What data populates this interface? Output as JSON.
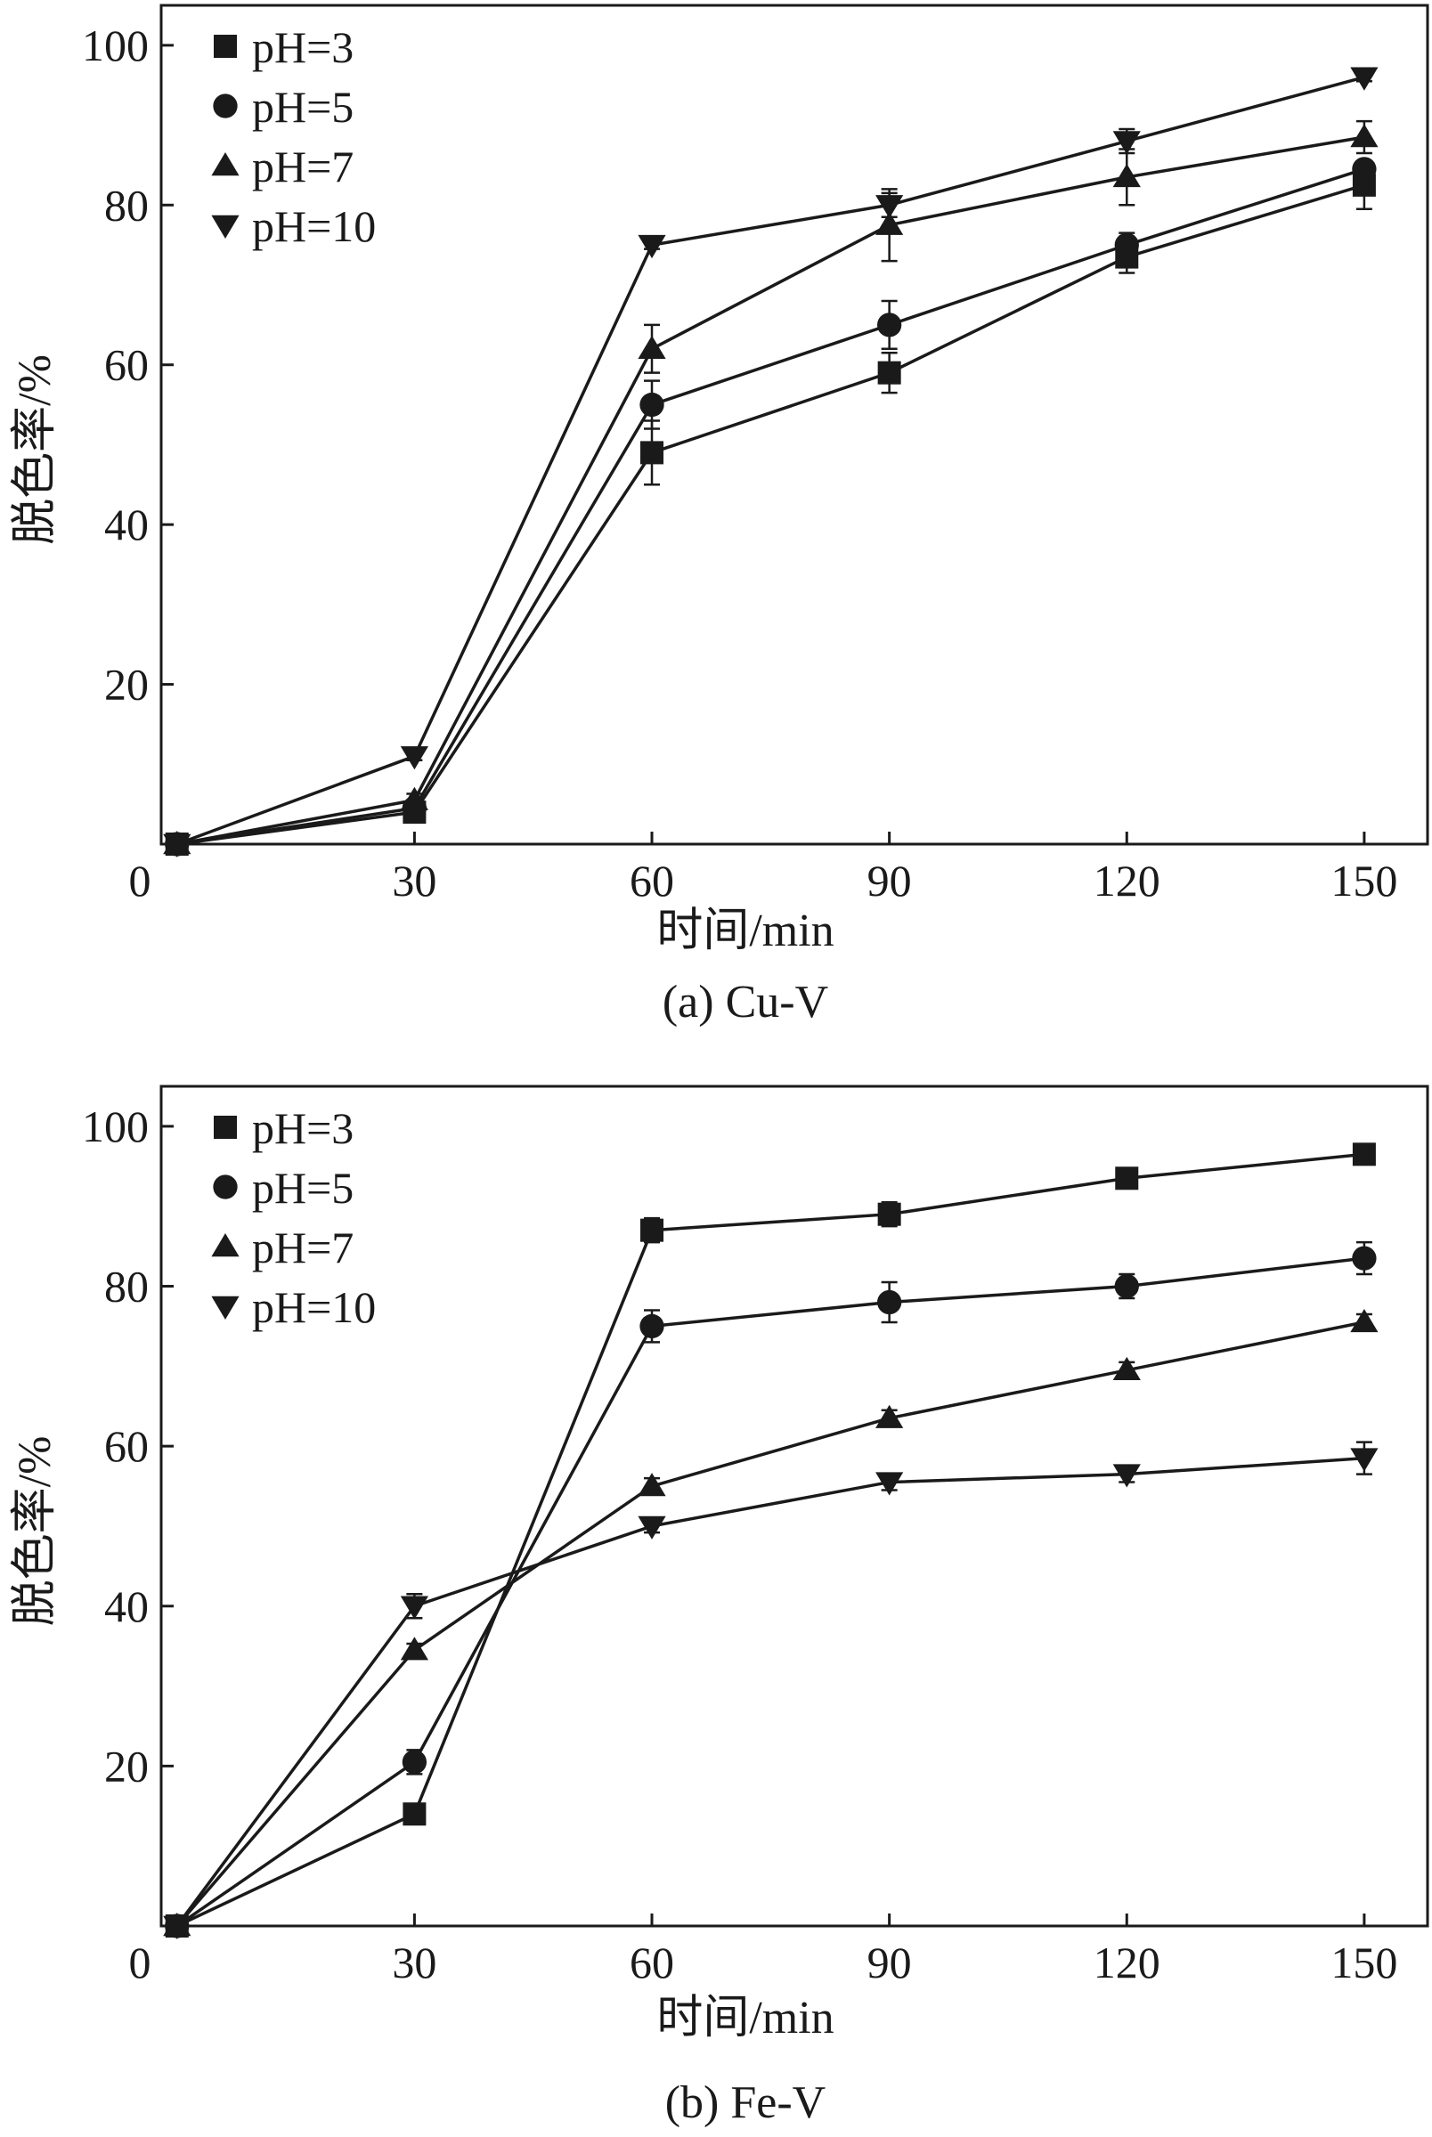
{
  "chart_data": [
    {
      "type": "line",
      "id": "a",
      "caption": "(a) Cu-V",
      "xlabel": "时间/min",
      "ylabel": "脱色率/%",
      "x": [
        0,
        30,
        60,
        90,
        120,
        150
      ],
      "xticks": [
        "0",
        "30",
        "60",
        "90",
        "120",
        "150"
      ],
      "yticks": [
        "0",
        "20",
        "40",
        "60",
        "80",
        "100"
      ],
      "xlim": [
        -2,
        158
      ],
      "ylim": [
        0,
        105
      ],
      "legend_position": "top-left",
      "series": [
        {
          "name": "pH=3",
          "marker": "square",
          "values": [
            0,
            4,
            49,
            59,
            73.5,
            82.5
          ],
          "errors": [
            0,
            0.8,
            4,
            2.5,
            2,
            3
          ]
        },
        {
          "name": "pH=5",
          "marker": "circle",
          "values": [
            0,
            4.5,
            55,
            65,
            75,
            84.5
          ],
          "errors": [
            0,
            0.8,
            3,
            3,
            1.5,
            1
          ]
        },
        {
          "name": "pH=7",
          "marker": "triangle-up",
          "values": [
            0,
            5.5,
            62,
            77.5,
            83.5,
            88.5
          ],
          "errors": [
            0,
            0.8,
            3,
            4.5,
            3.5,
            2
          ]
        },
        {
          "name": "pH=10",
          "marker": "triangle-down",
          "values": [
            0,
            11,
            75,
            80,
            88,
            96
          ],
          "errors": [
            0,
            0.5,
            0.5,
            1.5,
            1.5,
            0.5
          ]
        }
      ]
    },
    {
      "type": "line",
      "id": "b",
      "caption": "(b) Fe-V",
      "xlabel": "时间/min",
      "ylabel": "脱色率/%",
      "x": [
        0,
        30,
        60,
        90,
        120,
        150
      ],
      "xticks": [
        "0",
        "30",
        "60",
        "90",
        "120",
        "150"
      ],
      "yticks": [
        "0",
        "20",
        "40",
        "60",
        "80",
        "100"
      ],
      "xlim": [
        -2,
        158
      ],
      "ylim": [
        0,
        105
      ],
      "legend_position": "top-left",
      "series": [
        {
          "name": "pH=3",
          "marker": "square",
          "values": [
            0,
            14,
            87,
            89,
            93.5,
            96.5
          ],
          "errors": [
            0,
            0.5,
            1.5,
            1.5,
            1,
            1
          ]
        },
        {
          "name": "pH=5",
          "marker": "circle",
          "values": [
            0,
            20.5,
            75,
            78,
            80,
            83.5
          ],
          "errors": [
            0,
            1.5,
            2,
            2.5,
            1.5,
            2
          ]
        },
        {
          "name": "pH=7",
          "marker": "triangle-up",
          "values": [
            0,
            34.5,
            55,
            63.5,
            69.5,
            75.5
          ],
          "errors": [
            0,
            0.8,
            1,
            1,
            1,
            1
          ]
        },
        {
          "name": "pH=10",
          "marker": "triangle-down",
          "values": [
            0,
            40,
            50,
            55.5,
            56.5,
            58.5
          ],
          "errors": [
            0,
            1.5,
            0.8,
            1,
            1,
            2
          ]
        }
      ]
    }
  ]
}
